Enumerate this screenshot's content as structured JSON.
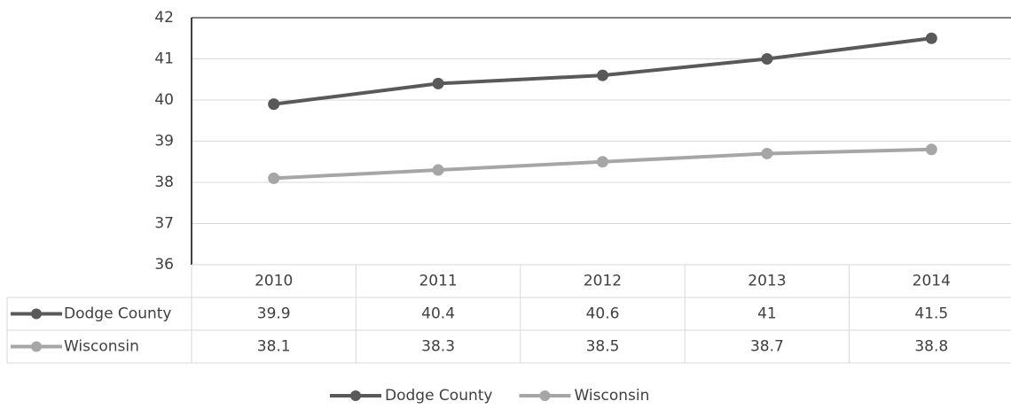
{
  "chart_data": {
    "type": "line",
    "categories": [
      "2010",
      "2011",
      "2012",
      "2013",
      "2014"
    ],
    "series": [
      {
        "name": "Dodge County",
        "color": "#595959",
        "values": [
          39.9,
          40.4,
          40.6,
          41,
          41.5
        ]
      },
      {
        "name": "Wisconsin",
        "color": "#a6a6a6",
        "values": [
          38.1,
          38.3,
          38.5,
          38.7,
          38.8
        ]
      }
    ],
    "ylim": [
      36,
      42
    ],
    "yticks": [
      36,
      37,
      38,
      39,
      40,
      41,
      42
    ],
    "grid": true,
    "data_table": true,
    "legend": "bottom"
  }
}
